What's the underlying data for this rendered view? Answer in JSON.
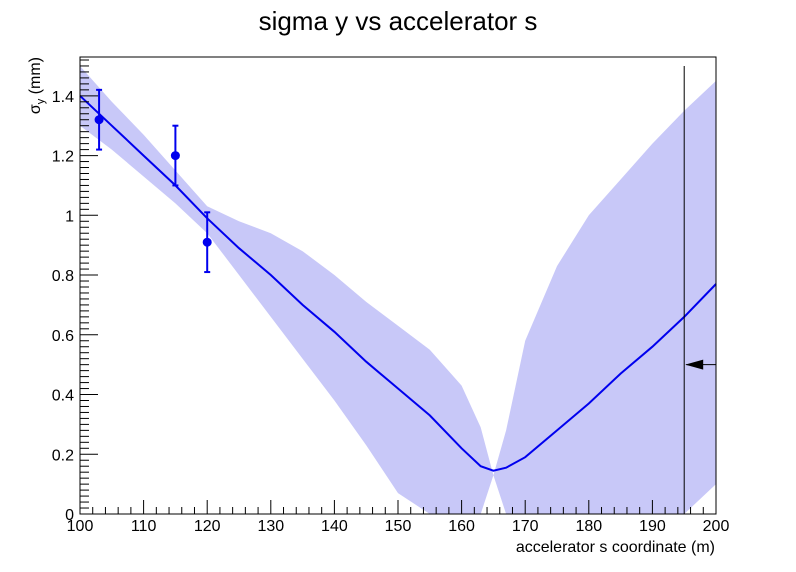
{
  "chart_data": {
    "type": "line",
    "title": "sigma y vs accelerator s",
    "xlabel": "accelerator s coordinate (m)",
    "ylabel": {
      "symbol": "σ",
      "subscript": "y",
      "unit": " (mm)"
    },
    "xlim": [
      100,
      200
    ],
    "ylim": [
      0,
      1.53
    ],
    "x_ticks": [
      100,
      110,
      120,
      130,
      140,
      150,
      160,
      170,
      180,
      190,
      200
    ],
    "x_tick_labels": [
      "100",
      "110",
      "120",
      "130",
      "140",
      "150",
      "160",
      "170",
      "180",
      "190",
      "200"
    ],
    "y_ticks": [
      0,
      0.2,
      0.4,
      0.6,
      0.8,
      1.0,
      1.2,
      1.4
    ],
    "y_tick_labels": [
      "0",
      "0.2",
      "0.4",
      "0.6",
      "0.8",
      "1",
      "1.2",
      "1.4"
    ],
    "grid": false,
    "legend": "none",
    "colors": {
      "fit_line": "#0000ee",
      "band": "#c8c8f8",
      "points": "#0000ee",
      "marker_line": "#000000"
    },
    "fit_curve": {
      "x": [
        100,
        105,
        110,
        115,
        120,
        125,
        130,
        135,
        140,
        145,
        150,
        155,
        160,
        163,
        165,
        167,
        170,
        175,
        180,
        185,
        190,
        195,
        200
      ],
      "y": [
        1.4,
        1.3,
        1.2,
        1.1,
        0.99,
        0.89,
        0.8,
        0.7,
        0.61,
        0.51,
        0.42,
        0.33,
        0.22,
        0.16,
        0.145,
        0.155,
        0.19,
        0.28,
        0.37,
        0.47,
        0.56,
        0.66,
        0.77
      ]
    },
    "band": {
      "x": [
        100,
        105,
        110,
        115,
        120,
        125,
        130,
        135,
        140,
        145,
        150,
        155,
        160,
        163,
        165,
        167,
        170,
        175,
        180,
        185,
        190,
        195,
        200
      ],
      "upper": [
        1.5,
        1.38,
        1.27,
        1.15,
        1.03,
        0.98,
        0.94,
        0.88,
        0.8,
        0.71,
        0.63,
        0.55,
        0.43,
        0.29,
        0.13,
        0.28,
        0.58,
        0.83,
        1.0,
        1.12,
        1.24,
        1.35,
        1.45
      ],
      "lower": [
        1.3,
        1.22,
        1.13,
        1.04,
        0.94,
        0.8,
        0.66,
        0.52,
        0.38,
        0.23,
        0.07,
        0.0,
        0.0,
        0.0,
        0.13,
        0.0,
        0.0,
        0.0,
        0.0,
        0.0,
        0.0,
        0.0,
        0.1
      ]
    },
    "points": [
      {
        "x": 103,
        "y": 1.32,
        "yerr": 0.1
      },
      {
        "x": 115,
        "y": 1.2,
        "yerr": 0.1
      },
      {
        "x": 120,
        "y": 0.91,
        "yerr": 0.1
      }
    ],
    "marker": {
      "vertical_line_x": 195,
      "arrow_y": 0.5,
      "arrow_direction": "left"
    }
  }
}
